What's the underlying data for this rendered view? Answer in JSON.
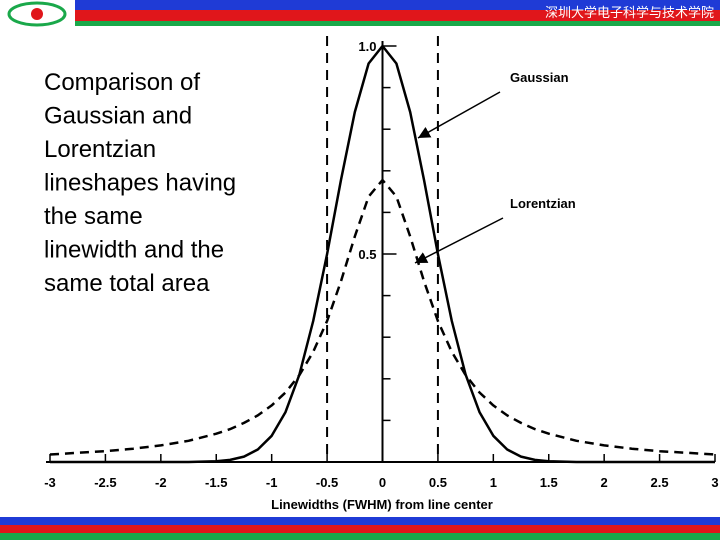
{
  "header": {
    "title": "深圳大学电子科学与技术学院"
  },
  "body": {
    "text": [
      "Comparison of",
      "Gaussian and",
      "Lorentzian",
      "lineshapes having",
      "the same",
      "linewidth and the",
      "same total area"
    ]
  },
  "chart_data": {
    "type": "line",
    "x_label": "Linewidths (FWHM) from line center",
    "x": [
      -3,
      -2.75,
      -2.5,
      -2.25,
      -2,
      -1.75,
      -1.5,
      -1.375,
      -1.25,
      -1.125,
      -1,
      -0.875,
      -0.75,
      -0.625,
      -0.5,
      -0.375,
      -0.25,
      -0.125,
      0,
      0.125,
      0.25,
      0.375,
      0.5,
      0.625,
      0.75,
      0.875,
      1,
      1.125,
      1.25,
      1.375,
      1.5,
      1.75,
      2,
      2.25,
      2.5,
      2.75,
      3
    ],
    "series": [
      {
        "name": "Gaussian",
        "color": "#000000",
        "dash": false,
        "values": [
          0,
          0,
          0,
          0,
          0,
          0,
          0.002,
          0.005,
          0.013,
          0.03,
          0.063,
          0.12,
          0.21,
          0.339,
          0.5,
          0.677,
          0.841,
          0.958,
          1,
          0.958,
          0.841,
          0.677,
          0.5,
          0.339,
          0.21,
          0.12,
          0.063,
          0.03,
          0.013,
          0.005,
          0.002,
          0,
          0,
          0,
          0,
          0,
          0
        ]
      },
      {
        "name": "Lorentzian",
        "color": "#000000",
        "dash": true,
        "values": [
          0.018,
          0.022,
          0.026,
          0.032,
          0.04,
          0.051,
          0.068,
          0.079,
          0.094,
          0.112,
          0.136,
          0.167,
          0.209,
          0.265,
          0.339,
          0.434,
          0.542,
          0.638,
          0.678,
          0.638,
          0.542,
          0.434,
          0.339,
          0.265,
          0.209,
          0.167,
          0.136,
          0.112,
          0.094,
          0.079,
          0.068,
          0.051,
          0.04,
          0.032,
          0.026,
          0.022,
          0.018
        ]
      }
    ],
    "xlim": [
      -3,
      3
    ],
    "xticks": [
      -3,
      -2.5,
      -2,
      -1.5,
      -1,
      -0.5,
      0,
      0.5,
      1,
      1.5,
      2,
      2.5,
      3
    ],
    "ylim": [
      0,
      1
    ],
    "yticks": [
      0.5,
      {
        "value": 1,
        "label": "1.0"
      }
    ],
    "yminor": [
      0.1,
      0.2,
      0.3,
      0.4,
      0.6,
      0.7,
      0.8,
      0.9
    ],
    "vlines": [
      -0.5,
      0.5
    ]
  }
}
